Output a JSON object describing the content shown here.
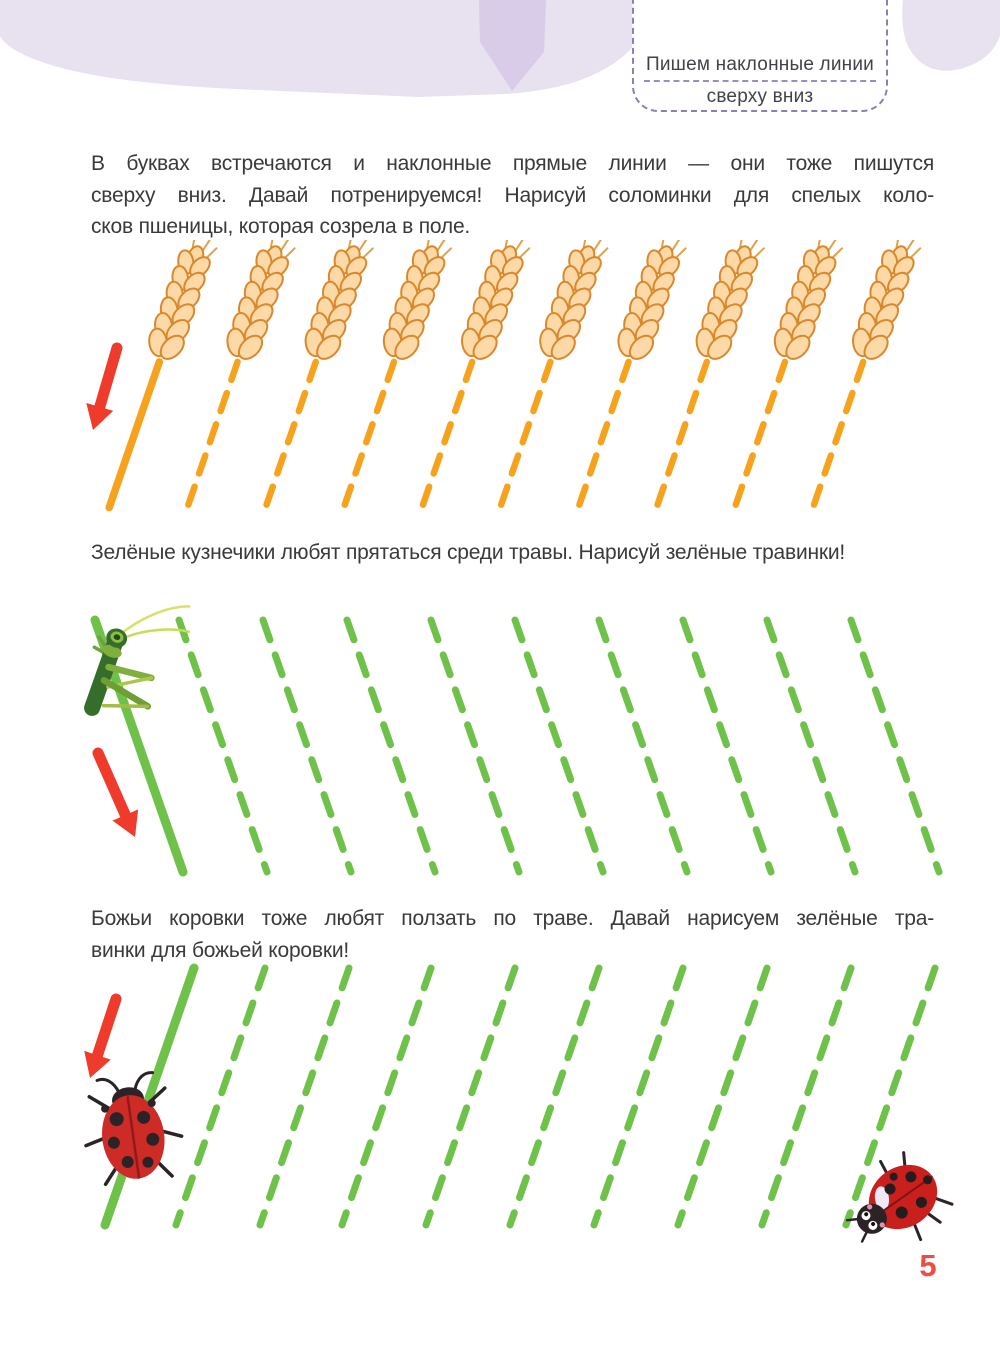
{
  "page": {
    "number": "5"
  },
  "header": {
    "badge_line1": "Пишем наклонные линии",
    "badge_line2": "сверху вниз",
    "accent_purple": "#8f7db5",
    "blob_light": "#e8e1f0",
    "blob_dark": "#d9cce8"
  },
  "intro": {
    "lines": [
      "В буквах встречаются и наклонные прямые линии — они тоже пишутся",
      "сверху вниз. Давай потренируемся! Нарисуй соломинки для спелых коло-",
      "сков пшеницы, которая созрела в поле."
    ]
  },
  "captions": {
    "grasshopper": "Зелёные кузнечики любят прятаться среди травы. Нарисуй зелёные травинки!",
    "ladybug_lines": [
      "Божьи коровки тоже любят ползать по траве. Давай нарисуем зелёные тра-",
      "винки для божьей коровки!"
    ]
  },
  "tasks": [
    {
      "id": "wheat-straws",
      "line_count": 10,
      "solid_lines": 1,
      "line_color": "#f6a21d",
      "slant": "down-left",
      "mascot": "wheat-ear"
    },
    {
      "id": "grass-grasshopper",
      "line_count": 10,
      "solid_lines": 1,
      "line_color": "#6ec24a",
      "slant": "down-right",
      "mascot": "grasshopper"
    },
    {
      "id": "grass-ladybug",
      "line_count": 10,
      "solid_lines": 1,
      "line_color": "#6ec24a",
      "slant": "down-left",
      "mascot": "ladybug"
    }
  ],
  "illustrations": {
    "arrow_color": "#ee3b2c",
    "wheat_fill": "#fcd9a6",
    "wheat_outline": "#d9882b",
    "grasshopper_green": "#356d2b",
    "ladybug_red": "#ce2b27",
    "ladybug_black": "#2b2326"
  }
}
